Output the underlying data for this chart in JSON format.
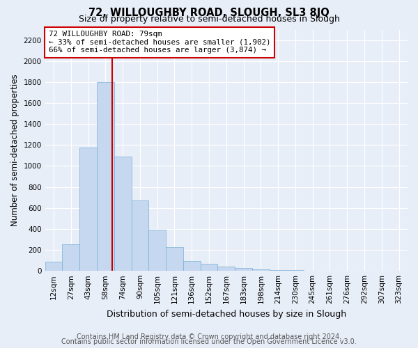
{
  "title": "72, WILLOUGHBY ROAD, SLOUGH, SL3 8JQ",
  "subtitle": "Size of property relative to semi-detached houses in Slough",
  "xlabel": "Distribution of semi-detached houses by size in Slough",
  "ylabel": "Number of semi-detached properties",
  "bar_labels": [
    "12sqm",
    "27sqm",
    "43sqm",
    "58sqm",
    "74sqm",
    "90sqm",
    "105sqm",
    "121sqm",
    "136sqm",
    "152sqm",
    "167sqm",
    "183sqm",
    "198sqm",
    "214sqm",
    "230sqm",
    "245sqm",
    "261sqm",
    "276sqm",
    "292sqm",
    "307sqm",
    "323sqm"
  ],
  "bar_values": [
    90,
    250,
    1175,
    1800,
    1090,
    670,
    395,
    230,
    95,
    70,
    40,
    30,
    15,
    10,
    8,
    3,
    3,
    1,
    0,
    0,
    0
  ],
  "bar_color": "#c5d8f0",
  "bar_edge_color": "#7aafd4",
  "annotation_text": "72 WILLOUGHBY ROAD: 79sqm\n← 33% of semi-detached houses are smaller (1,902)\n66% of semi-detached houses are larger (3,874) →",
  "annotation_box_color": "#ffffff",
  "annotation_box_edge_color": "#cc0000",
  "vline_color": "#cc0000",
  "vline_pos": 3.4,
  "ylim": [
    0,
    2300
  ],
  "yticks": [
    0,
    200,
    400,
    600,
    800,
    1000,
    1200,
    1400,
    1600,
    1800,
    2000,
    2200
  ],
  "background_color": "#e8eef8",
  "grid_color": "#ffffff",
  "footer_line1": "Contains HM Land Registry data © Crown copyright and database right 2024.",
  "footer_line2": "Contains public sector information licensed under the Open Government Licence v3.0.",
  "title_fontsize": 10.5,
  "subtitle_fontsize": 9,
  "tick_fontsize": 7.5,
  "xlabel_fontsize": 9,
  "ylabel_fontsize": 8.5,
  "footer_fontsize": 7,
  "annotation_fontsize": 7.8
}
